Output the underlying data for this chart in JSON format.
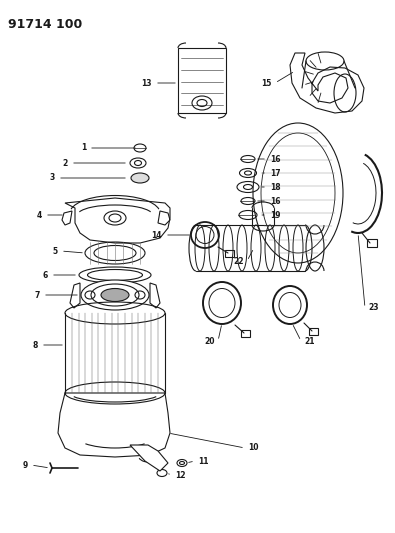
{
  "title": "91714 100",
  "bg_color": "#ffffff",
  "line_color": "#1a1a1a",
  "figsize": [
    3.95,
    5.33
  ],
  "dpi": 100
}
